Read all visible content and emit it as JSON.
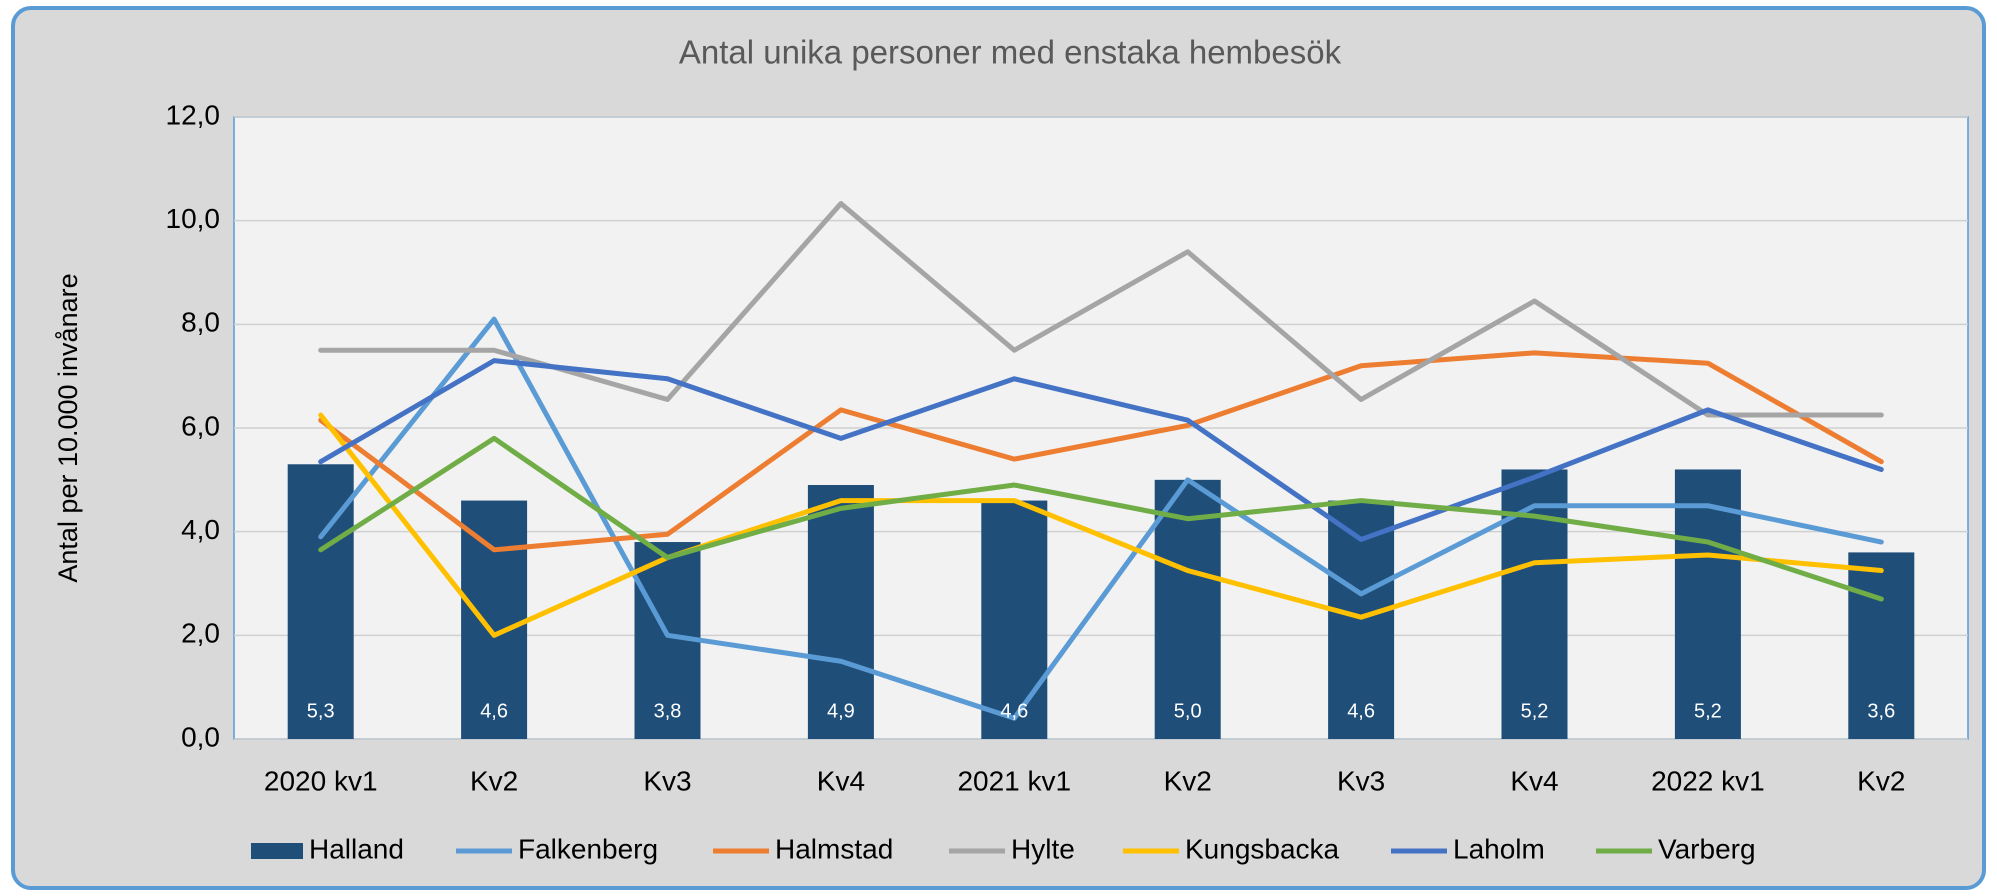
{
  "chart_data": {
    "type": "bar",
    "title": "Antal unika personer med enstaka hembesök",
    "ylabel": "Antal per 10.000 invånare",
    "categories": [
      "2020 kv1",
      "Kv2",
      "Kv3",
      "Kv4",
      "2021 kv1",
      "Kv2",
      "Kv3",
      "Kv4",
      "2022 kv1",
      "Kv2"
    ],
    "ylim": [
      0,
      12
    ],
    "yticks": [
      {
        "value": 0,
        "label": "0,0"
      },
      {
        "value": 2,
        "label": "2,0"
      },
      {
        "value": 4,
        "label": "4,0"
      },
      {
        "value": 6,
        "label": "6,0"
      },
      {
        "value": 8,
        "label": "8,0"
      },
      {
        "value": 10,
        "label": "10,0"
      },
      {
        "value": 12,
        "label": "12,0"
      }
    ],
    "grid": true,
    "legend": "bottom",
    "series": [
      {
        "name": "Halland",
        "type": "bar",
        "color": "#1f4e79",
        "values": [
          5.3,
          4.6,
          3.8,
          4.9,
          4.6,
          5.0,
          4.6,
          5.2,
          5.2,
          3.6
        ],
        "value_labels": [
          "5,3",
          "4,6",
          "3,8",
          "4,9",
          "4,6",
          "5,0",
          "4,6",
          "5,2",
          "5,2",
          "3,6"
        ]
      },
      {
        "name": "Falkenberg",
        "type": "line",
        "color": "#5b9bd5",
        "values": [
          3.9,
          8.1,
          2.0,
          1.5,
          0.4,
          5.0,
          2.8,
          4.5,
          4.5,
          3.8
        ]
      },
      {
        "name": "Halmstad",
        "type": "line",
        "color": "#ed7d31",
        "values": [
          6.15,
          3.65,
          3.95,
          6.35,
          5.4,
          6.05,
          7.2,
          7.45,
          7.25,
          5.35
        ]
      },
      {
        "name": "Hylte",
        "type": "line",
        "color": "#a5a5a5",
        "values": [
          7.5,
          7.5,
          6.55,
          10.33,
          7.5,
          9.4,
          6.55,
          8.45,
          6.25,
          6.25
        ]
      },
      {
        "name": "Kungsbacka",
        "type": "line",
        "color": "#ffc000",
        "values": [
          6.25,
          2.0,
          3.5,
          4.6,
          4.6,
          3.25,
          2.35,
          3.4,
          3.55,
          3.25
        ]
      },
      {
        "name": "Laholm",
        "type": "line",
        "color": "#4472c4",
        "values": [
          5.35,
          7.3,
          6.95,
          5.8,
          6.95,
          6.15,
          3.85,
          5.05,
          6.35,
          5.2
        ]
      },
      {
        "name": "Varberg",
        "type": "line",
        "color": "#70ad47",
        "values": [
          3.65,
          5.8,
          3.5,
          4.45,
          4.9,
          4.25,
          4.6,
          4.3,
          3.8,
          2.7
        ]
      }
    ]
  }
}
